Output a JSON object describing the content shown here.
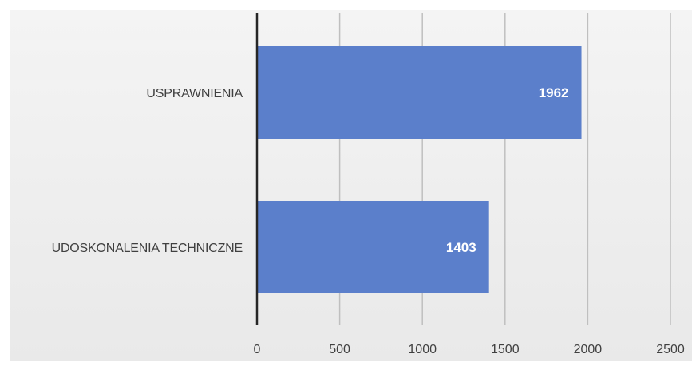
{
  "chart_data": {
    "type": "bar",
    "orientation": "horizontal",
    "categories": [
      "USPRAWNIENIA",
      "UDOSKONALENIA TECHNICZNE"
    ],
    "values": [
      1962,
      1403
    ],
    "data_labels": [
      "1962",
      "1403"
    ],
    "title": "",
    "xlabel": "",
    "ylabel": "",
    "xlim": [
      0,
      2500
    ],
    "xticks": [
      0,
      500,
      1000,
      1500,
      2000,
      2500
    ],
    "tick_labels": [
      "0",
      "500",
      "1000",
      "1500",
      "2000",
      "2500"
    ],
    "grid": "vertical",
    "legend": "none",
    "bar_color": "#5b7fcb",
    "gridline_color": "#bfbfbf",
    "axis_color": "#262626"
  }
}
